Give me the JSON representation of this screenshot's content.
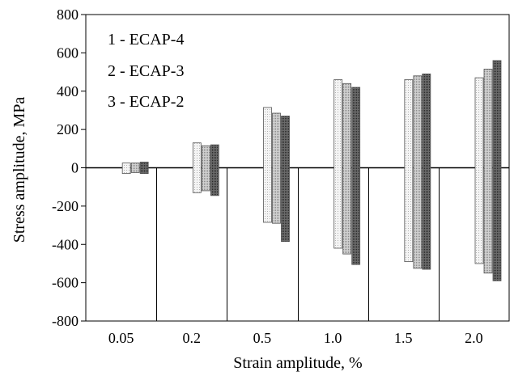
{
  "chart_data": {
    "type": "bar",
    "xlabel": "Strain amplitude, %",
    "ylabel": "Stress amplitude, MPa",
    "ylim": [
      -800,
      800
    ],
    "yticks": [
      800,
      600,
      400,
      200,
      0,
      -200,
      -400,
      -600,
      -800
    ],
    "ytick_labels": [
      "800",
      "600",
      "400",
      "200",
      "0",
      "-200",
      "-400",
      "-600",
      "-800"
    ],
    "categories": [
      "0.05",
      "0.2",
      "0.5",
      "1.0",
      "1.5",
      "2.0"
    ],
    "grid": false,
    "legend_position": "top-left",
    "legend": [
      "1 - ECAP-4",
      "2 - ECAP-3",
      "3 - ECAP-2"
    ],
    "series": [
      {
        "name": "1 - ECAP-4",
        "color": "#f2f2f2",
        "max": [
          25,
          130,
          315,
          460,
          460,
          470
        ],
        "min": [
          -30,
          -130,
          -285,
          -420,
          -490,
          -500
        ]
      },
      {
        "name": "2 - ECAP-3",
        "color": "#bdbdbd",
        "max": [
          25,
          115,
          285,
          440,
          480,
          515
        ],
        "min": [
          -25,
          -120,
          -290,
          -450,
          -525,
          -550
        ]
      },
      {
        "name": "3 - ECAP-2",
        "color": "#555555",
        "max": [
          30,
          120,
          270,
          420,
          490,
          560
        ],
        "min": [
          -30,
          -145,
          -385,
          -505,
          -530,
          -590
        ]
      }
    ]
  }
}
